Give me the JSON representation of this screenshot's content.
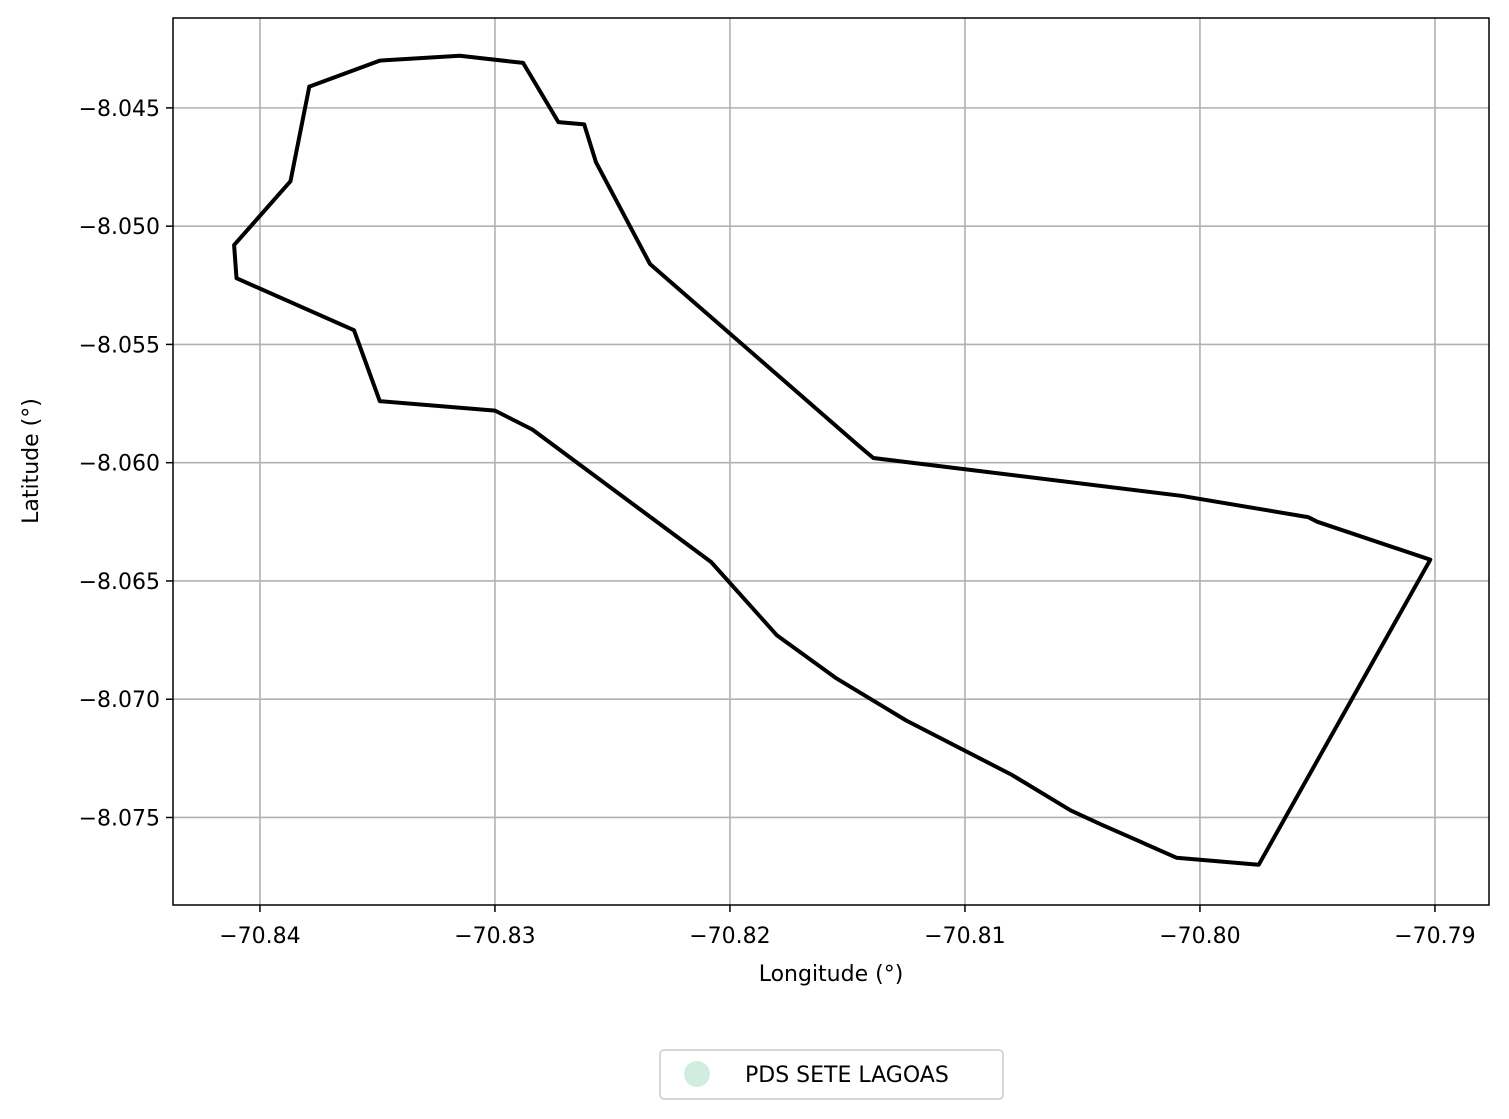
{
  "chart_data": {
    "type": "line",
    "xlabel": "Longitude (°)",
    "ylabel": "Latitude (°)",
    "xlim": [
      -70.8437,
      -70.7877
    ],
    "ylim": [
      -8.0787,
      -8.0412
    ],
    "xticks": [
      -70.84,
      -70.83,
      -70.82,
      -70.81,
      -70.8,
      -70.79
    ],
    "xtick_labels": [
      "−70.84",
      "−70.83",
      "−70.82",
      "−70.81",
      "−70.80",
      "−70.79"
    ],
    "yticks": [
      -8.045,
      -8.05,
      -8.055,
      -8.06,
      -8.065,
      -8.07,
      -8.075
    ],
    "ytick_labels": [
      "−8.045",
      "−8.050",
      "−8.055",
      "−8.060",
      "−8.065",
      "−8.070",
      "−8.075"
    ],
    "grid": true,
    "legend_placement": "bottom-center",
    "series": [
      {
        "name": "PDS SETE LAGOAS",
        "legend_marker_color": "#d2ede0",
        "line_color": "#000000",
        "x": [
          -70.8379,
          -70.8349,
          -70.8315,
          -70.8288,
          -70.8273,
          -70.8262,
          -70.8257,
          -70.8234,
          -70.8145,
          -70.8139,
          -70.8008,
          -70.7954,
          -70.795,
          -70.7902,
          -70.7975,
          -70.801,
          -70.8026,
          -70.8042,
          -70.8055,
          -70.808,
          -70.8125,
          -70.8155,
          -70.818,
          -70.8208,
          -70.8284,
          -70.83,
          -70.8349,
          -70.836,
          -70.841,
          -70.8411,
          -70.8387,
          -70.8379
        ],
        "y": [
          -8.0441,
          -8.043,
          -8.0428,
          -8.0431,
          -8.0456,
          -8.0457,
          -8.0473,
          -8.0516,
          -8.0593,
          -8.0598,
          -8.0614,
          -8.0623,
          -8.0625,
          -8.0641,
          -8.077,
          -8.0767,
          -8.076,
          -8.0753,
          -8.0747,
          -8.0732,
          -8.0709,
          -8.0691,
          -8.0673,
          -8.0642,
          -8.0586,
          -8.0578,
          -8.0574,
          -8.0544,
          -8.0522,
          -8.0508,
          -8.0481,
          -8.0441
        ]
      }
    ]
  }
}
